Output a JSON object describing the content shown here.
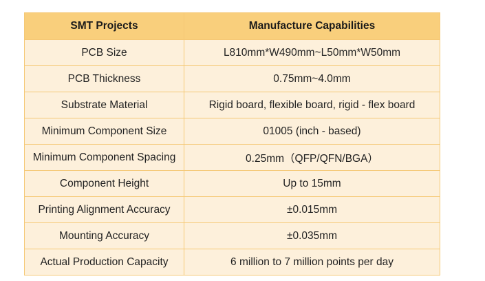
{
  "table": {
    "headers": [
      "SMT Projects",
      "Manufacture Capabilities"
    ],
    "rows": [
      [
        "PCB Size",
        "L810mm*W490mm~L50mm*W50mm"
      ],
      [
        "PCB Thickness",
        "0.75mm~4.0mm"
      ],
      [
        "Substrate Material",
        "Rigid board, flexible board, rigid - flex board"
      ],
      [
        "Minimum Component Size",
        "01005 (inch - based)"
      ],
      [
        "Minimum Component Spacing",
        "0.25mm（QFP/QFN/BGA）"
      ],
      [
        "Component Height",
        "Up to 15mm"
      ],
      [
        "Printing Alignment Accuracy",
        "±0.015mm"
      ],
      [
        "Mounting Accuracy",
        "±0.035mm"
      ],
      [
        "Actual Production Capacity",
        "6 million to 7 million points per day"
      ]
    ]
  },
  "colors": {
    "header_bg": "#f9cf7c",
    "cell_bg": "#fdf0db",
    "border": "#f5c875"
  }
}
